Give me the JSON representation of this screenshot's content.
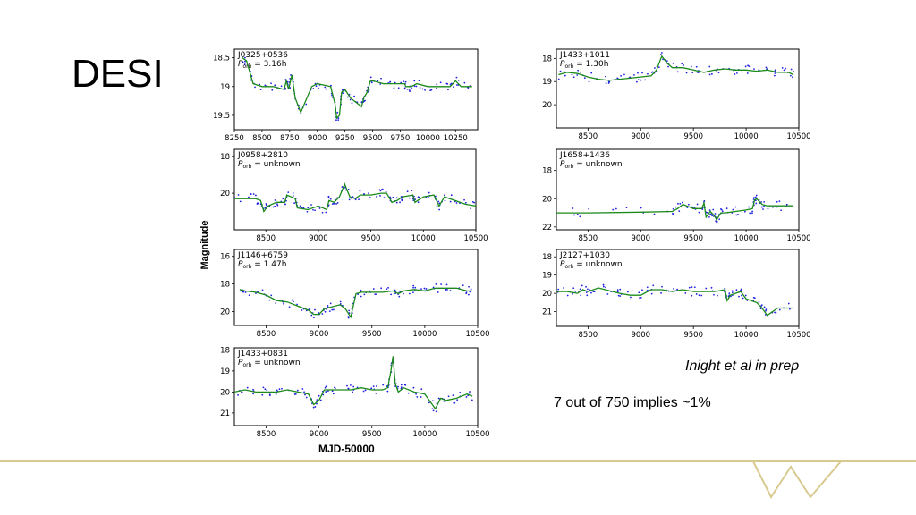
{
  "slide": {
    "title": "DESI",
    "credit": "Inight et al in prep",
    "note": "7 out of 750 implies ~1%",
    "ylabel": "Magnitude",
    "xlabel": "MJD-50000"
  },
  "colors": {
    "line": "#1a8a1a",
    "points": "#2020e0",
    "accent": "#d8c98f"
  },
  "chart_data": [
    {
      "type": "scatter",
      "name_label": "J0325+0536",
      "period_label": "P_orb = 3.16h",
      "xlim": [
        8250,
        10450
      ],
      "ylim": [
        19.75,
        18.35
      ],
      "xticks": [
        8250,
        8500,
        8750,
        9000,
        9250,
        9500,
        9750,
        10000,
        10250
      ],
      "yticks": [
        18.5,
        19.0,
        19.5
      ],
      "line": {
        "x": [
          8320,
          8360,
          8420,
          8500,
          8600,
          8700,
          8720,
          8740,
          8770,
          8800,
          8850,
          8950,
          9000,
          9120,
          9160,
          9175,
          9200,
          9220,
          9250,
          9300,
          9400,
          9420,
          9450,
          9480,
          9500,
          9600,
          9700,
          9790,
          9800,
          9850,
          9900,
          10000,
          10100,
          10200,
          10250,
          10300,
          10400
        ],
        "y": [
          18.5,
          18.55,
          18.95,
          19.0,
          19.0,
          19.05,
          18.9,
          19.05,
          18.8,
          19.2,
          19.45,
          19.0,
          18.95,
          19.0,
          19.3,
          19.55,
          19.5,
          19.1,
          19.05,
          19.2,
          19.35,
          19.2,
          19.1,
          18.9,
          18.9,
          18.95,
          18.95,
          18.95,
          19.0,
          19.0,
          18.95,
          19.0,
          19.0,
          19.0,
          18.9,
          19.0,
          19.0
        ]
      }
    },
    {
      "type": "scatter",
      "name_label": "J1433+1011",
      "period_label": "P_orb = 1.30h",
      "xlim": [
        8200,
        10500
      ],
      "ylim": [
        21.0,
        17.6
      ],
      "xticks": [
        8500,
        9000,
        9500,
        10000,
        10500
      ],
      "yticks": [
        18,
        19,
        20
      ],
      "line": {
        "x": [
          8220,
          8300,
          8400,
          8500,
          8600,
          8700,
          8800,
          8900,
          9000,
          9100,
          9150,
          9200,
          9250,
          9300,
          9400,
          9500,
          9600,
          9700,
          9800,
          9900,
          10000,
          10100,
          10200,
          10300,
          10400,
          10450
        ],
        "y": [
          18.7,
          18.6,
          18.65,
          18.8,
          18.9,
          18.95,
          18.9,
          18.85,
          18.8,
          18.75,
          18.5,
          17.9,
          18.2,
          18.4,
          18.4,
          18.5,
          18.6,
          18.5,
          18.45,
          18.5,
          18.5,
          18.55,
          18.5,
          18.6,
          18.6,
          18.7
        ]
      }
    },
    {
      "type": "scatter",
      "name_label": "J0958+2810",
      "period_label": "P_orb = unknown",
      "xlim": [
        8200,
        10500
      ],
      "ylim": [
        22.0,
        17.6
      ],
      "xticks": [
        8500,
        9000,
        9500,
        10000,
        10500
      ],
      "yticks": [
        18,
        20
      ],
      "line": {
        "x": [
          8200,
          8300,
          8400,
          8450,
          8480,
          8520,
          8600,
          8680,
          8700,
          8780,
          8800,
          8900,
          9000,
          9080,
          9100,
          9150,
          9200,
          9250,
          9300,
          9350,
          9400,
          9500,
          9600,
          9650,
          9700,
          9750,
          9800,
          9900,
          9920,
          10000,
          10100,
          10150,
          10200,
          10300,
          10400,
          10500
        ],
        "y": [
          20.3,
          20.3,
          20.3,
          20.4,
          21.0,
          20.7,
          20.5,
          20.5,
          20.1,
          20.3,
          20.8,
          20.9,
          20.7,
          20.9,
          20.4,
          20.5,
          20.2,
          19.5,
          20.2,
          20.3,
          20.1,
          20.1,
          20.0,
          20.0,
          20.5,
          20.4,
          20.2,
          20.1,
          20.5,
          20.2,
          20.1,
          20.7,
          20.2,
          20.4,
          20.6,
          20.7
        ]
      }
    },
    {
      "type": "scatter",
      "name_label": "J1658+1436",
      "period_label": "P_orb = unknown",
      "xlim": [
        8200,
        10500
      ],
      "ylim": [
        22.2,
        16.5
      ],
      "xticks": [
        8500,
        9000,
        9500,
        10000,
        10500
      ],
      "yticks": [
        18,
        20,
        22
      ],
      "line": {
        "x": [
          8200,
          8500,
          9000,
          9300,
          9350,
          9400,
          9500,
          9580,
          9600,
          9620,
          9660,
          9700,
          9720,
          9760,
          9800,
          9900,
          10000,
          10060,
          10080,
          10100,
          10150,
          10200,
          10300,
          10450
        ],
        "y": [
          21.0,
          21.0,
          20.95,
          20.9,
          20.7,
          20.4,
          20.7,
          20.7,
          20.3,
          21.3,
          20.9,
          21.2,
          21.5,
          21.0,
          21.0,
          20.9,
          20.8,
          20.7,
          20.1,
          20.0,
          20.4,
          20.5,
          20.5,
          20.5
        ]
      }
    },
    {
      "type": "scatter",
      "name_label": "J1146+6759",
      "period_label": "P_orb = 1.47h",
      "xlim": [
        8200,
        10500
      ],
      "ylim": [
        21.0,
        15.5
      ],
      "xticks": [
        8500,
        9000,
        9500,
        10000,
        10500
      ],
      "yticks": [
        16,
        18,
        20
      ],
      "line": {
        "x": [
          8250,
          8300,
          8400,
          8500,
          8600,
          8700,
          8800,
          8900,
          8950,
          9000,
          9050,
          9100,
          9200,
          9250,
          9300,
          9350,
          9400,
          9500,
          9600,
          9700,
          9750,
          9800,
          9900,
          10000,
          10100,
          10200,
          10300,
          10400,
          10450
        ],
        "y": [
          18.4,
          18.5,
          18.6,
          18.8,
          19.2,
          19.3,
          19.6,
          19.9,
          20.2,
          20.2,
          19.8,
          19.7,
          19.5,
          19.8,
          20.4,
          18.7,
          18.6,
          18.6,
          18.6,
          18.5,
          18.7,
          18.5,
          18.4,
          18.5,
          18.3,
          18.3,
          18.3,
          18.5,
          18.5
        ]
      }
    },
    {
      "type": "scatter",
      "name_label": "J2127+1030",
      "period_label": "P_orb = unknown",
      "xlim": [
        8200,
        10500
      ],
      "ylim": [
        21.8,
        17.6
      ],
      "xticks": [
        8500,
        9000,
        9500,
        10000,
        10500
      ],
      "yticks": [
        18,
        19,
        20,
        21
      ],
      "line": {
        "x": [
          8200,
          8300,
          8400,
          8450,
          8500,
          8600,
          8700,
          8800,
          8900,
          9000,
          9100,
          9200,
          9300,
          9400,
          9500,
          9600,
          9700,
          9800,
          9820,
          9850,
          9900,
          9950,
          10000,
          10100,
          10150,
          10200,
          10300,
          10450
        ],
        "y": [
          19.9,
          19.9,
          20.0,
          19.8,
          19.9,
          19.7,
          19.85,
          20.0,
          20.1,
          20.1,
          19.8,
          19.8,
          19.9,
          19.8,
          19.9,
          19.9,
          19.9,
          19.8,
          20.4,
          20.1,
          20.0,
          19.9,
          20.3,
          20.5,
          20.8,
          21.2,
          20.8,
          20.8
        ]
      }
    },
    {
      "type": "scatter",
      "name_label": "J1433+0831",
      "period_label": "P_orb = unknown",
      "xlim": [
        8200,
        10500
      ],
      "ylim": [
        21.6,
        17.9
      ],
      "xticks": [
        8500,
        9000,
        9500,
        10000,
        10500
      ],
      "yticks": [
        18,
        19,
        20,
        21
      ],
      "line": {
        "x": [
          8200,
          8300,
          8400,
          8500,
          8600,
          8700,
          8800,
          8900,
          8950,
          9000,
          9050,
          9100,
          9200,
          9300,
          9400,
          9500,
          9600,
          9650,
          9680,
          9700,
          9720,
          9750,
          9800,
          9900,
          10000,
          10100,
          10150,
          10200,
          10300,
          10400,
          10450
        ],
        "y": [
          20.0,
          19.9,
          20.0,
          20.0,
          20.0,
          19.9,
          20.0,
          20.1,
          20.6,
          20.4,
          19.9,
          19.9,
          19.9,
          19.9,
          19.8,
          19.9,
          19.9,
          19.8,
          19.0,
          18.3,
          19.6,
          20.0,
          19.8,
          20.0,
          20.1,
          20.8,
          20.3,
          20.4,
          20.3,
          20.1,
          20.2
        ]
      }
    }
  ]
}
